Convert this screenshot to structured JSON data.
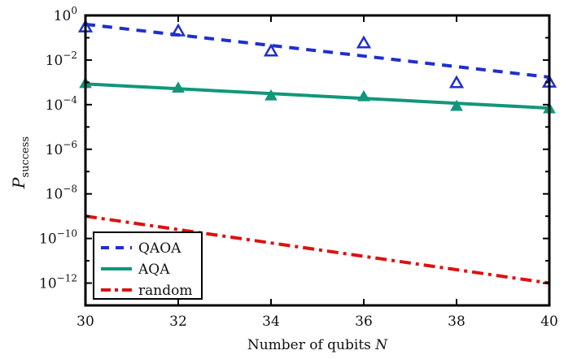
{
  "chart_data": {
    "type": "line",
    "title": "",
    "xlabel": "Number of qubits",
    "xlabel_var": "N",
    "ylabel": "P",
    "ylabel_sub": "success",
    "xlim": [
      30,
      40
    ],
    "ylim": [
      1e-13,
      1
    ],
    "yscale": "log",
    "grid": false,
    "x_ticks": [
      30,
      32,
      34,
      36,
      38,
      40
    ],
    "x_tick_labels": [
      "30",
      "32",
      "34",
      "36",
      "38",
      "40"
    ],
    "y_ticks": [
      {
        "base": "10",
        "exp": "0",
        "value": 1
      },
      {
        "base": "10",
        "exp": "−2",
        "value": 0.01
      },
      {
        "base": "10",
        "exp": "−4",
        "value": 0.0001
      },
      {
        "base": "10",
        "exp": "−6",
        "value": 1e-06
      },
      {
        "base": "10",
        "exp": "−8",
        "value": 1e-08
      },
      {
        "base": "10",
        "exp": "−10",
        "value": 1e-10
      },
      {
        "base": "10",
        "exp": "−12",
        "value": 1e-12
      }
    ],
    "legend_position": "bottom-left",
    "series": [
      {
        "name": "QAOA",
        "color": "#1f2fcc",
        "line_style": "dashed",
        "marker": "open-triangle",
        "points": {
          "x": [
            30,
            32,
            34,
            36,
            38,
            40
          ],
          "y": [
            0.3,
            0.2,
            0.025,
            0.058,
            0.00095,
            0.001
          ]
        },
        "fit": {
          "x": [
            30,
            40
          ],
          "y": [
            0.4,
            0.0017
          ]
        }
      },
      {
        "name": "AQA",
        "color": "#129679",
        "line_style": "solid",
        "marker": "filled-triangle",
        "points": {
          "x": [
            30,
            32,
            34,
            36,
            38,
            40
          ],
          "y": [
            0.0009,
            0.00056,
            0.00025,
            0.00023,
            8.5e-05,
            6.6e-05
          ]
        },
        "fit": {
          "x": [
            30,
            40
          ],
          "y": [
            0.00085,
            7e-05
          ]
        }
      },
      {
        "name": "random",
        "color": "#dd1111",
        "line_style": "dash-dot",
        "marker": "none",
        "points": {
          "x": [],
          "y": []
        },
        "fit": {
          "x": [
            30,
            40
          ],
          "y": [
            1e-09,
            1e-12
          ]
        }
      }
    ]
  }
}
